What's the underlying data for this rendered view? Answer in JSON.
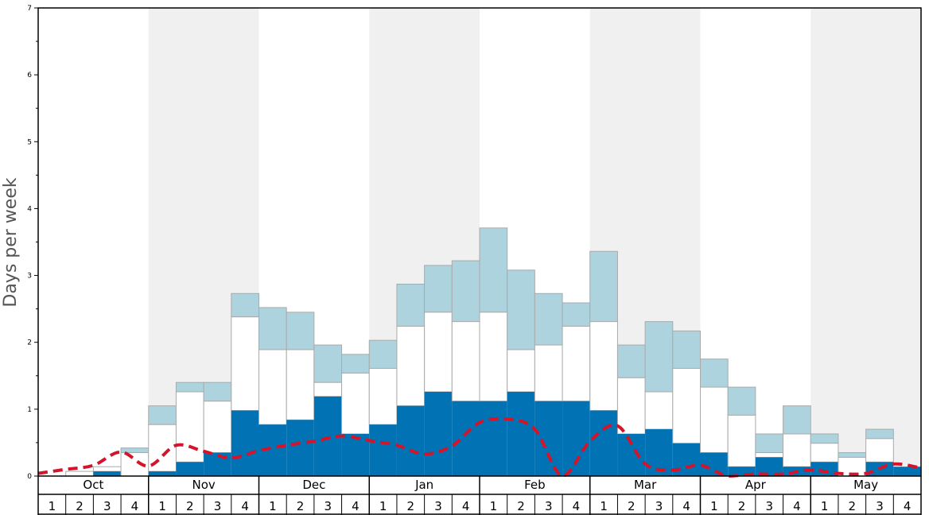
{
  "chart_data": {
    "type": "bar",
    "title": "",
    "ylabel": "Days per week",
    "ylim": [
      0,
      7
    ],
    "yticks": [
      "0",
      "1",
      "2",
      "3",
      "4",
      "5",
      "6",
      "7"
    ],
    "months": [
      "Oct",
      "Nov",
      "Dec",
      "Jan",
      "Feb",
      "Mar",
      "Apr",
      "May"
    ],
    "week_labels": [
      "1",
      "2",
      "3",
      "4"
    ],
    "shading": [
      "white",
      "gray",
      "white",
      "gray",
      "white",
      "gray",
      "white",
      "gray"
    ],
    "colors": {
      "dark": "#0173b4",
      "mid": "#ffffff",
      "light": "#add3df",
      "line": "#d4142a",
      "band": "#f0f0f0",
      "bar_edge": "#aaaaaa"
    },
    "series": [
      {
        "name": "dark",
        "values": [
          0,
          0,
          0.07,
          0,
          0.07,
          0.21,
          0.35,
          0.98,
          0.77,
          0.84,
          1.19,
          0.63,
          0.77,
          1.05,
          1.26,
          1.12,
          1.12,
          1.26,
          1.12,
          1.12,
          0.98,
          0.63,
          0.7,
          0.49,
          0.35,
          0.14,
          0.28,
          0.14,
          0.21,
          0,
          0.21,
          0.14
        ]
      },
      {
        "name": "mid_top",
        "values": [
          0,
          0.07,
          0.14,
          0.35,
          0.77,
          1.26,
          1.12,
          2.38,
          1.89,
          1.89,
          1.4,
          1.54,
          1.61,
          2.24,
          2.45,
          2.31,
          2.45,
          1.89,
          1.96,
          2.24,
          2.31,
          1.47,
          1.26,
          1.61,
          1.33,
          0.91,
          0.35,
          0.63,
          0.49,
          0.28,
          0.56,
          0.14
        ]
      },
      {
        "name": "light_top",
        "values": [
          0,
          0.07,
          0.14,
          0.42,
          1.05,
          1.4,
          1.4,
          2.73,
          2.52,
          2.45,
          1.96,
          1.82,
          2.03,
          2.87,
          3.15,
          3.22,
          3.71,
          3.08,
          2.73,
          2.59,
          3.36,
          1.96,
          2.31,
          2.17,
          1.75,
          1.33,
          0.63,
          1.05,
          0.63,
          0.35,
          0.7,
          0.14
        ]
      },
      {
        "name": "average",
        "type": "line",
        "style": "dashed",
        "values": [
          0.04,
          0.1,
          0.16,
          0.36,
          0.15,
          0.46,
          0.37,
          0.27,
          0.38,
          0.46,
          0.52,
          0.6,
          0.53,
          0.46,
          0.33,
          0.45,
          0.8,
          0.85,
          0.7,
          0.0,
          0.52,
          0.75,
          0.18,
          0.09,
          0.16,
          0.0,
          0.03,
          0.03,
          0.09,
          0.04,
          0.04,
          0.18,
          0.12
        ]
      }
    ]
  }
}
